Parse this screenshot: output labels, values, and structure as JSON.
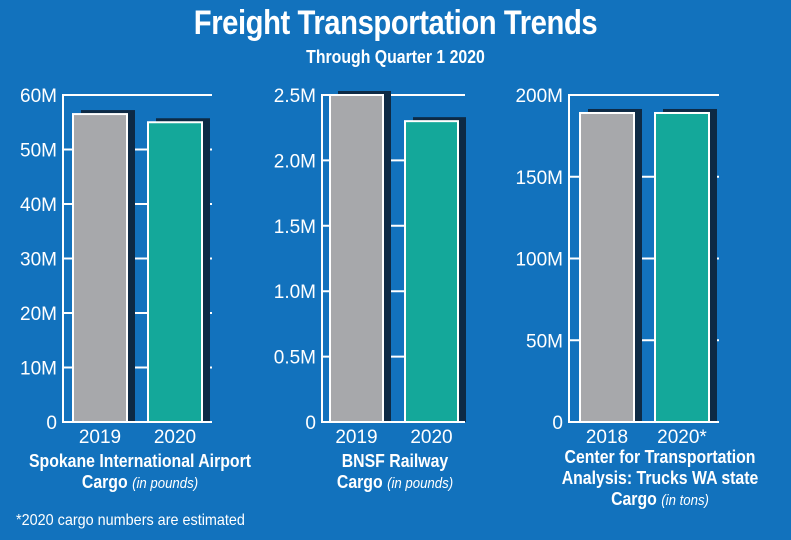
{
  "title": "Freight Transportation Trends",
  "subtitle": "Through Quarter 1 2020",
  "footnote": "*2020 cargo numbers are estimated",
  "colors": {
    "background": "#1272bd",
    "bar_2019": "#a7a8ab",
    "bar_2020": "#14a89a",
    "shadow": "#0d2a45",
    "axis": "#ffffff"
  },
  "chart_data": [
    {
      "type": "bar",
      "caption": "Spokane International Airport Cargo",
      "unit": "(in pounds)",
      "categories": [
        "2019",
        "2020"
      ],
      "values": [
        56500000,
        55000000
      ],
      "ylim": [
        0,
        60000000
      ],
      "yticks": [
        0,
        10000000,
        20000000,
        30000000,
        40000000,
        50000000,
        60000000
      ],
      "ytick_labels": [
        "0",
        "10M",
        "20M",
        "30M",
        "40M",
        "50M",
        "60M"
      ],
      "grid": true
    },
    {
      "type": "bar",
      "caption": "BNSF Railway Cargo",
      "unit": "(in pounds)",
      "categories": [
        "2019",
        "2020"
      ],
      "values": [
        2500000,
        2300000
      ],
      "ylim": [
        0,
        2500000
      ],
      "yticks": [
        0,
        500000,
        1000000,
        1500000,
        2000000,
        2500000
      ],
      "ytick_labels": [
        "0",
        "0.5M",
        "1.0M",
        "1.5M",
        "2.0M",
        "2.5M"
      ],
      "grid": true
    },
    {
      "type": "bar",
      "caption": "Center for Transportation Analysis: Trucks WA state Cargo",
      "unit": "(in tons)",
      "categories": [
        "2018",
        "2020*"
      ],
      "values": [
        189000000,
        189000000
      ],
      "ylim": [
        0,
        200000000
      ],
      "yticks": [
        0,
        50000000,
        100000000,
        150000000,
        200000000
      ],
      "ytick_labels": [
        "0",
        "50M",
        "100M",
        "150M",
        "200M"
      ],
      "grid": true
    }
  ]
}
